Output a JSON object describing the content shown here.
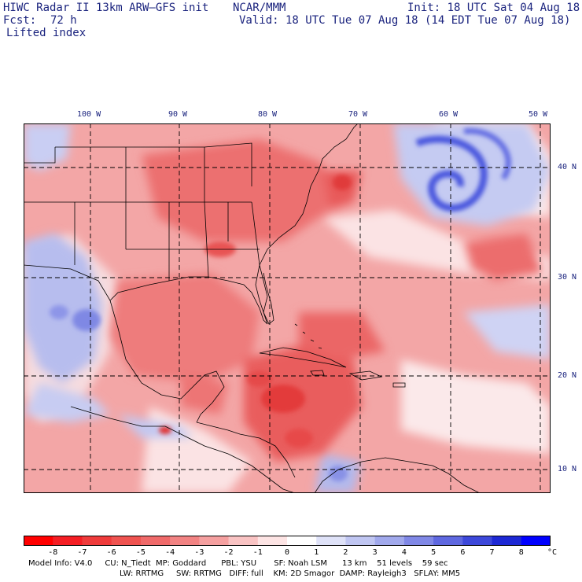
{
  "header": {
    "title": "HIWC Radar II 13km ARW–GFS init",
    "org": "NCAR/MMM",
    "init": "Init: 18 UTC Sat 04 Aug 18",
    "fcst_label": "Fcst:",
    "fcst_value": "72 h",
    "valid": "Valid: 18 UTC Tue 07 Aug 18 (14 EDT Tue 07 Aug 18)",
    "field": "Lifted index"
  },
  "map": {
    "lon_labels": [
      "100 W",
      "90 W",
      "80 W",
      "70 W",
      "60 W",
      "50 W"
    ],
    "lat_labels": [
      "40 N",
      "30 N",
      "20 N",
      "10 N"
    ],
    "colors": {
      "very_unstable": "#e53935",
      "unstable": "#ef9a9a",
      "neutral": "#fdecec",
      "stable": "#9fa8da",
      "very_stable": "#2f3fd6",
      "border": "#000000",
      "grid": "#000000"
    }
  },
  "colorbar": {
    "labels": [
      "-8",
      "-7",
      "-6",
      "-5",
      "-4",
      "-3",
      "-2",
      "-1",
      "0",
      "1",
      "2",
      "3",
      "4",
      "5",
      "6",
      "7",
      "8"
    ],
    "unit": "°C",
    "colors": [
      "#ff0000",
      "#f41e24",
      "#ef3b3b",
      "#ef5350",
      "#f06a6a",
      "#f28383",
      "#f5a0a0",
      "#f9c3c3",
      "#fde4e4",
      "#ffffff",
      "#dfe2f8",
      "#c0c6f2",
      "#a1a9ec",
      "#8088e6",
      "#5f68e0",
      "#3d48da",
      "#1d28d4",
      "#0000ff"
    ]
  },
  "footer": {
    "line1": "Model Info: V4.0     CU: N_Tiedt  MP: Goddard      PBL: YSU       SF: Noah LSM      13 km    51 levels    59 sec",
    "line2": "LW: RRTMG     SW: RRTMG   DIFF: full    KM: 2D Smagor  DAMP: Rayleigh3   SFLAY: MM5"
  }
}
